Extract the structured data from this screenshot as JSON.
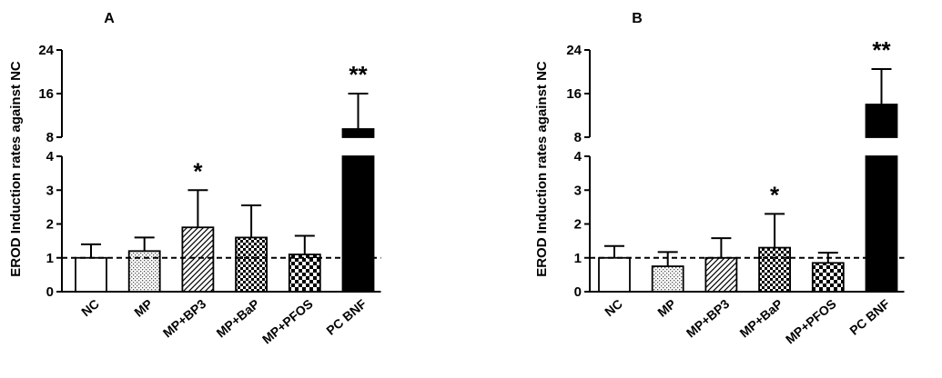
{
  "chart_data": [
    {
      "type": "bar",
      "panel": "A",
      "ylabel": "EROD Induction rates against NC",
      "categories": [
        "NC",
        "MP",
        "MP+BP3",
        "MP+BaP",
        "MP+PFOS",
        "PC BNF"
      ],
      "values": [
        1.0,
        1.2,
        1.9,
        1.6,
        1.1,
        9.5
      ],
      "errors": [
        0.4,
        0.4,
        1.1,
        0.95,
        0.55,
        6.5
      ],
      "significance": [
        "",
        "",
        "*",
        "",
        "",
        "**"
      ],
      "patterns": [
        "white",
        "dots",
        "diagonal",
        "checker-fine",
        "checker-coarse",
        "black"
      ],
      "reference_line": 1,
      "axis_break": {
        "lower_ylim": [
          0,
          4
        ],
        "upper_ylim": [
          8,
          24
        ]
      },
      "yticks_lower": [
        "0",
        "1",
        "2",
        "3",
        "4"
      ],
      "yticks_upper": [
        "8",
        "16",
        "24"
      ]
    },
    {
      "type": "bar",
      "panel": "B",
      "ylabel": "EROD Induction rates against NC",
      "categories": [
        "NC",
        "MP",
        "MP+BP3",
        "MP+BaP",
        "MP+PFOS",
        "PC BNF"
      ],
      "values": [
        1.0,
        0.75,
        1.0,
        1.3,
        0.85,
        14.0
      ],
      "errors": [
        0.35,
        0.42,
        0.58,
        1.0,
        0.3,
        6.5
      ],
      "significance": [
        "",
        "",
        "",
        "*",
        "",
        "**"
      ],
      "patterns": [
        "white",
        "dots",
        "diagonal",
        "checker-fine",
        "checker-coarse",
        "black"
      ],
      "reference_line": 1,
      "axis_break": {
        "lower_ylim": [
          0,
          4
        ],
        "upper_ylim": [
          8,
          24
        ]
      },
      "yticks_lower": [
        "0",
        "1",
        "2",
        "3",
        "4"
      ],
      "yticks_upper": [
        "8",
        "16",
        "24"
      ]
    }
  ]
}
